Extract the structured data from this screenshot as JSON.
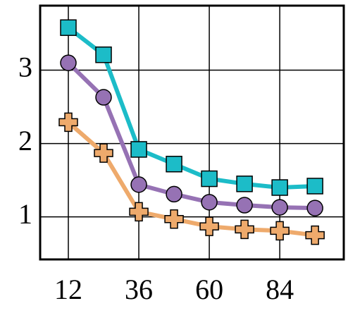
{
  "chart_data": {
    "type": "line",
    "x": [
      12,
      24,
      36,
      48,
      60,
      72,
      84,
      96
    ],
    "series": [
      {
        "color": "#1cbcc8",
        "marker": "square",
        "values": [
          3.58,
          3.21,
          1.92,
          1.72,
          1.52,
          1.45,
          1.4,
          1.42
        ]
      },
      {
        "color": "#9672b4",
        "marker": "circle",
        "values": [
          3.1,
          2.63,
          1.44,
          1.31,
          1.2,
          1.16,
          1.13,
          1.12
        ]
      },
      {
        "color": "#eeaa6c",
        "marker": "plus",
        "values": [
          2.29,
          1.87,
          1.07,
          0.97,
          0.87,
          0.83,
          0.81,
          0.75
        ]
      }
    ],
    "xlim": [
      2.4,
      105.8
    ],
    "ylim": [
      0.42,
      3.88
    ],
    "xticks": [
      12,
      36,
      60,
      84
    ],
    "yticks": [
      1,
      2,
      3
    ],
    "grid": true
  }
}
